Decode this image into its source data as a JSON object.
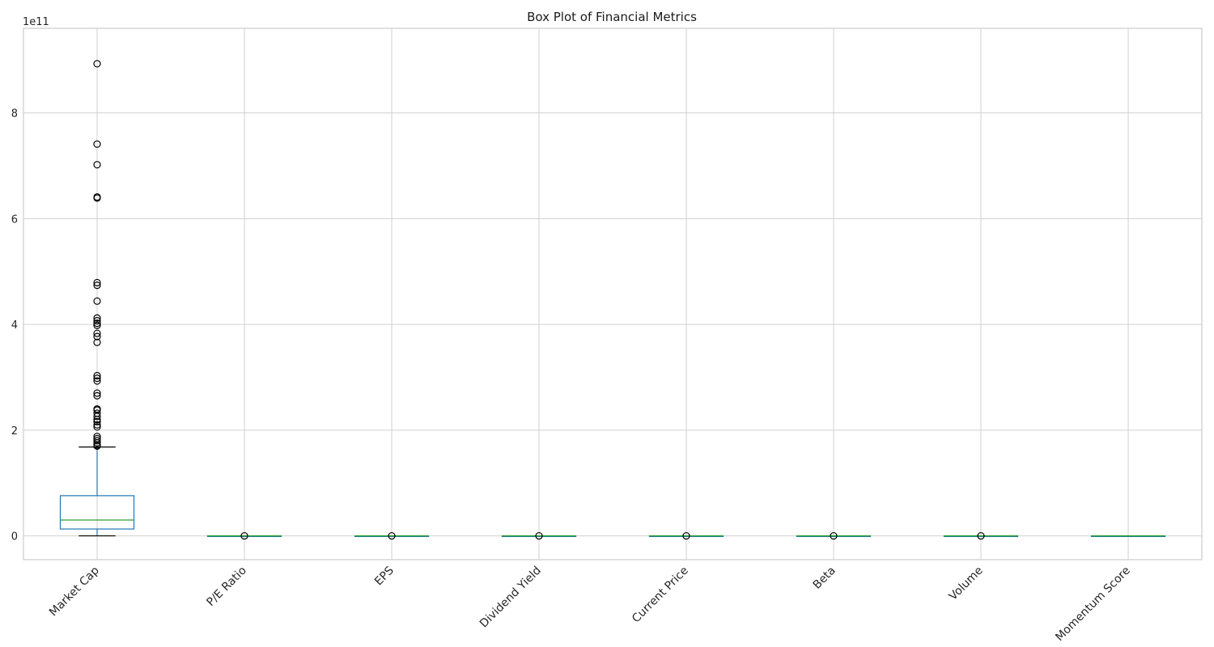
{
  "chart_data": {
    "type": "box",
    "title": "Box Plot of Financial Metrics",
    "xlabel": "",
    "ylabel": "",
    "y_offset_label": "1e11",
    "y_scale_factor": 100000000000,
    "ylim": [
      -0.45,
      9.6
    ],
    "yticks": [
      0,
      2,
      4,
      6,
      8
    ],
    "ytick_labels": [
      "0",
      "2",
      "4",
      "6",
      "8"
    ],
    "grid": true,
    "colors": {
      "box": "#1f77b4",
      "median": "#2ca02c",
      "whisker_cap": "#000000",
      "flier": "#000000",
      "grid": "#d0d0d0",
      "spine": "#cccccc"
    },
    "categories": [
      "Market Cap",
      "P/E Ratio",
      "EPS",
      "Dividend Yield",
      "Current Price",
      "Beta",
      "Volume",
      "Momentum Score"
    ],
    "boxes": [
      {
        "name": "Market Cap",
        "whislo": 0.0,
        "q1": 0.13,
        "med": 0.3,
        "q3": 0.76,
        "whishi": 1.68,
        "fliers": [
          1.7,
          1.72,
          1.76,
          1.8,
          1.84,
          1.88,
          2.06,
          2.1,
          2.16,
          2.2,
          2.26,
          2.32,
          2.38,
          2.4,
          2.65,
          2.7,
          2.93,
          2.98,
          3.03,
          3.66,
          3.77,
          3.83,
          3.98,
          4.02,
          4.07,
          4.12,
          4.44,
          4.74,
          4.79,
          6.39,
          6.41,
          7.02,
          7.41,
          8.93
        ]
      },
      {
        "name": "P/E Ratio",
        "whislo": 0,
        "q1": 0,
        "med": 0,
        "q3": 0,
        "whishi": 0,
        "fliers": [
          0
        ]
      },
      {
        "name": "EPS",
        "whislo": 0,
        "q1": 0,
        "med": 0,
        "q3": 0,
        "whishi": 0,
        "fliers": [
          0
        ]
      },
      {
        "name": "Dividend Yield",
        "whislo": 0,
        "q1": 0,
        "med": 0,
        "q3": 0,
        "whishi": 0,
        "fliers": [
          0
        ]
      },
      {
        "name": "Current Price",
        "whislo": 0,
        "q1": 0,
        "med": 0,
        "q3": 0,
        "whishi": 0,
        "fliers": [
          0
        ]
      },
      {
        "name": "Beta",
        "whislo": 0,
        "q1": 0,
        "med": 0,
        "q3": 0,
        "whishi": 0,
        "fliers": [
          0
        ]
      },
      {
        "name": "Volume",
        "whislo": 0,
        "q1": 0,
        "med": 0,
        "q3": 0,
        "whishi": 0,
        "fliers": [
          0
        ]
      },
      {
        "name": "Momentum Score",
        "whislo": 0,
        "q1": 0,
        "med": 0,
        "q3": 0,
        "whishi": 0,
        "fliers": []
      }
    ]
  }
}
